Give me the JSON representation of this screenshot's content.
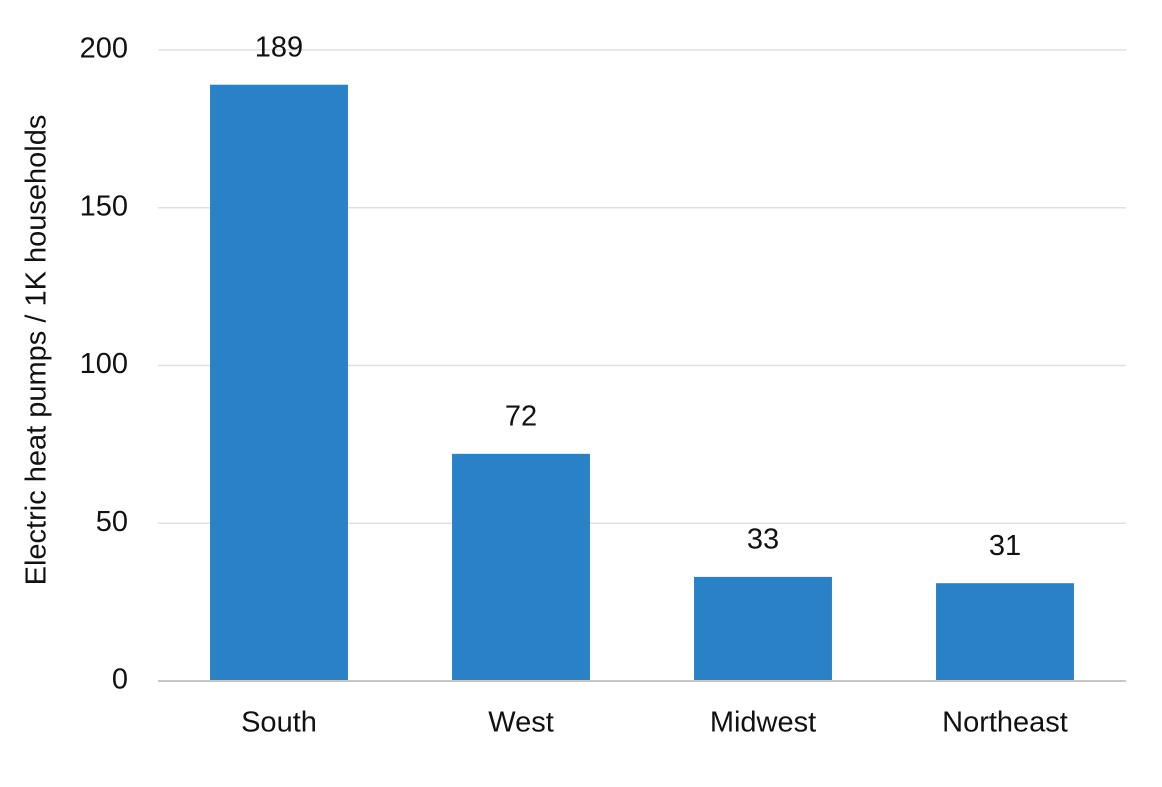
{
  "chart_data": {
    "type": "bar",
    "y_axis_label": "Electric heat pumps / 1K households",
    "categories": [
      "South",
      "West",
      "Midwest",
      "Northeast"
    ],
    "values": [
      189,
      72,
      33,
      31
    ],
    "color": "#2a82c6",
    "ylim": [
      0,
      200
    ],
    "yticks": [
      0,
      50,
      100,
      150,
      200
    ],
    "grid": true
  }
}
